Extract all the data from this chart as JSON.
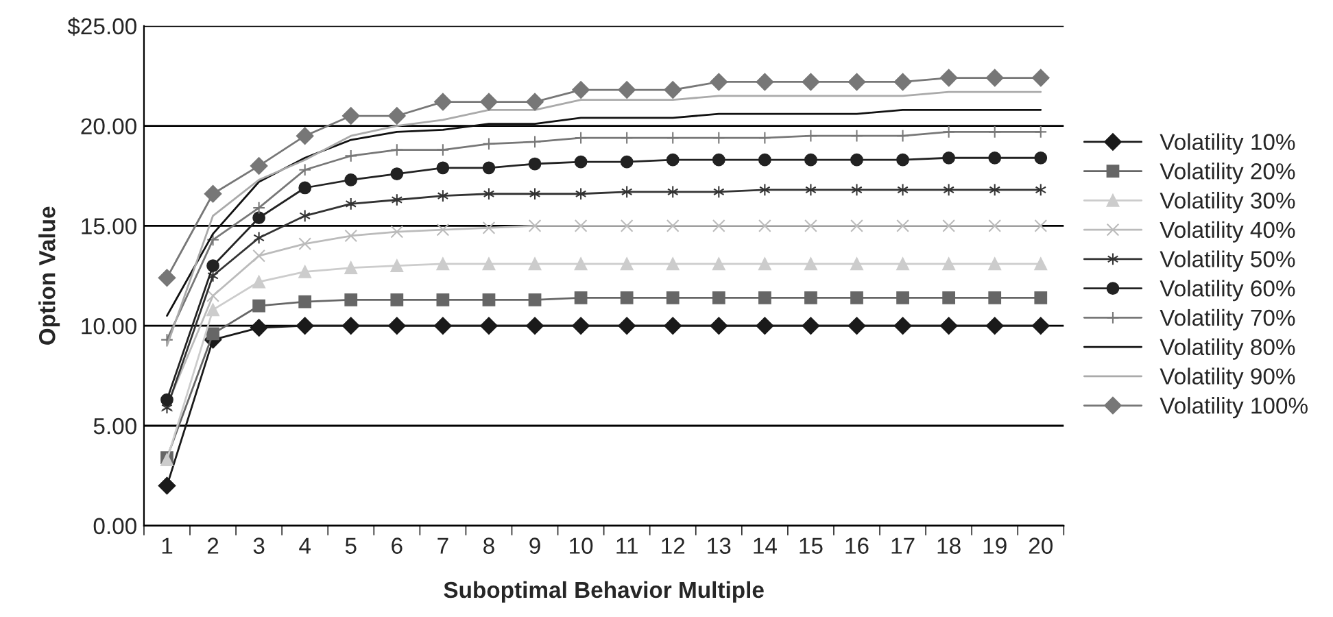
{
  "chart_data": {
    "type": "line",
    "xlabel": "Suboptimal Behavior Multiple",
    "ylabel": "Option Value",
    "categories": [
      "1",
      "2",
      "3",
      "4",
      "5",
      "6",
      "7",
      "8",
      "9",
      "10",
      "11",
      "12",
      "13",
      "14",
      "15",
      "16",
      "17",
      "18",
      "19",
      "20"
    ],
    "ylim": [
      0,
      25
    ],
    "yticks": [
      {
        "value": 0,
        "label": "0.00"
      },
      {
        "value": 5,
        "label": "5.00"
      },
      {
        "value": 10,
        "label": "10.00"
      },
      {
        "value": 15,
        "label": "15.00"
      },
      {
        "value": 20,
        "label": "20.00"
      },
      {
        "value": 25,
        "label": "$25.00"
      }
    ],
    "grid": "y",
    "legend": "right",
    "series": [
      {
        "name": "Volatility 10%",
        "color": "#1a1a1a",
        "marker": "diamond",
        "values": [
          2.0,
          9.3,
          9.9,
          10.0,
          10.0,
          10.0,
          10.0,
          10.0,
          10.0,
          10.0,
          10.0,
          10.0,
          10.0,
          10.0,
          10.0,
          10.0,
          10.0,
          10.0,
          10.0,
          10.0
        ]
      },
      {
        "name": "Volatility 20%",
        "color": "#666666",
        "marker": "square",
        "values": [
          3.4,
          9.6,
          11.0,
          11.2,
          11.3,
          11.3,
          11.3,
          11.3,
          11.3,
          11.4,
          11.4,
          11.4,
          11.4,
          11.4,
          11.4,
          11.4,
          11.4,
          11.4,
          11.4,
          11.4
        ]
      },
      {
        "name": "Volatility 30%",
        "color": "#cccccc",
        "marker": "triangle",
        "values": [
          3.3,
          10.8,
          12.2,
          12.7,
          12.9,
          13.0,
          13.1,
          13.1,
          13.1,
          13.1,
          13.1,
          13.1,
          13.1,
          13.1,
          13.1,
          13.1,
          13.1,
          13.1,
          13.1,
          13.1
        ]
      },
      {
        "name": "Volatility 40%",
        "color": "#bbbbbb",
        "marker": "cross",
        "values": [
          6.0,
          11.5,
          13.5,
          14.1,
          14.5,
          14.7,
          14.8,
          14.9,
          15.0,
          15.0,
          15.0,
          15.0,
          15.0,
          15.0,
          15.0,
          15.0,
          15.0,
          15.0,
          15.0,
          15.0
        ]
      },
      {
        "name": "Volatility 50%",
        "color": "#333333",
        "marker": "cross",
        "values": [
          5.9,
          12.5,
          14.4,
          15.5,
          16.1,
          16.3,
          16.5,
          16.6,
          16.6,
          16.6,
          16.7,
          16.7,
          16.7,
          16.8,
          16.8,
          16.8,
          16.8,
          16.8,
          16.8,
          16.8
        ]
      },
      {
        "name": "Volatility 60%",
        "color": "#222222",
        "marker": "circle",
        "values": [
          6.3,
          13.0,
          15.4,
          16.9,
          17.3,
          17.6,
          17.9,
          17.9,
          18.1,
          18.2,
          18.2,
          18.3,
          18.3,
          18.3,
          18.3,
          18.3,
          18.3,
          18.4,
          18.4,
          18.4
        ]
      },
      {
        "name": "Volatility 70%",
        "color": "#777777",
        "marker": "plus",
        "values": [
          9.3,
          14.3,
          15.9,
          17.8,
          18.5,
          18.8,
          18.8,
          19.1,
          19.2,
          19.4,
          19.4,
          19.4,
          19.4,
          19.4,
          19.5,
          19.5,
          19.5,
          19.7,
          19.7,
          19.7
        ]
      },
      {
        "name": "Volatility 80%",
        "color": "#111111",
        "values": [
          10.5,
          14.6,
          17.2,
          18.4,
          19.3,
          19.7,
          19.8,
          20.1,
          20.1,
          20.4,
          20.4,
          20.4,
          20.6,
          20.6,
          20.6,
          20.6,
          20.8,
          20.8,
          20.8,
          20.8
        ]
      },
      {
        "name": "Volatility 90%",
        "color": "#aaaaaa",
        "values": [
          9.0,
          15.5,
          17.3,
          18.3,
          19.5,
          20.0,
          20.3,
          20.8,
          20.8,
          21.3,
          21.3,
          21.3,
          21.5,
          21.5,
          21.5,
          21.5,
          21.5,
          21.7,
          21.7,
          21.7
        ]
      },
      {
        "name": "Volatility 100%",
        "color": "#777777",
        "marker": "diamond",
        "values": [
          12.4,
          16.6,
          18.0,
          19.5,
          20.5,
          20.5,
          21.2,
          21.2,
          21.2,
          21.8,
          21.8,
          21.8,
          22.2,
          22.2,
          22.2,
          22.2,
          22.2,
          22.4,
          22.4,
          22.4
        ]
      }
    ]
  }
}
